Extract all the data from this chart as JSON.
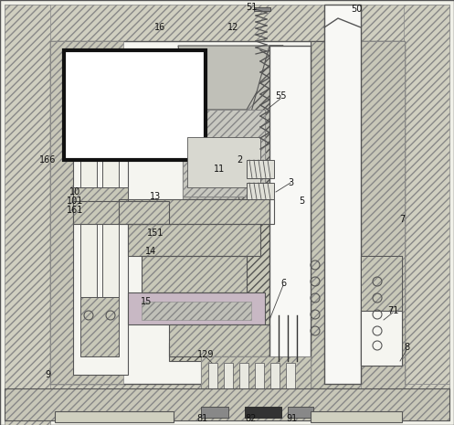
{
  "outer_hatch_color": "#aaaaaa",
  "outer_hatch_bg": "#d0cfc0",
  "inner_bg": "#f0f0e8",
  "pink": "#c8b8c4",
  "gray_hatch_bg": "#c8c8b8",
  "white": "#ffffff",
  "dark": "#222222",
  "mid_gray": "#b0b0a0",
  "light": "#e8e8e0"
}
